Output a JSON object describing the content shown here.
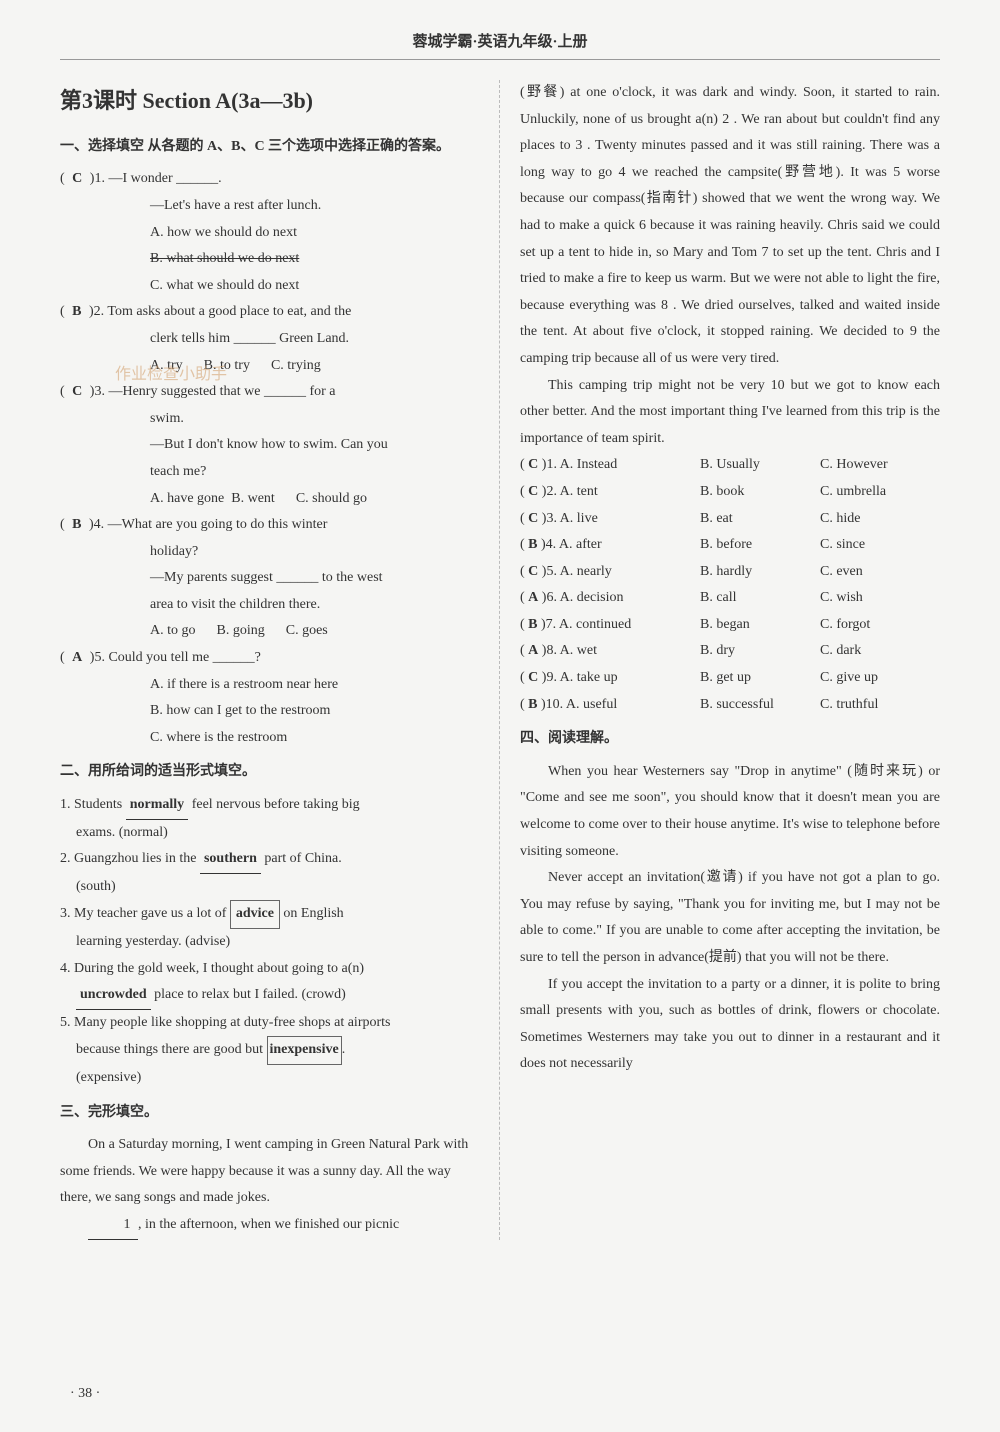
{
  "header": "蓉城学霸·英语九年级·上册",
  "pageNum": "· 38 ·",
  "left": {
    "sectionTitle": "第3课时  Section A(3a—3b)",
    "part1": {
      "heading": "一、选择填空  从各题的 A、B、C 三个选项中选择正确的答案。",
      "q1": {
        "prefix": "( ",
        "ans": "C",
        "num": " )1. —I wonder ______.",
        "line2": "—Let's have a rest after lunch.",
        "optA": "A. how we should do next",
        "optB": "B. what should we do next",
        "optC": "C. what we should do next"
      },
      "q2": {
        "prefix": "( ",
        "ans": "B",
        "num": " )2. Tom asks about a good place to eat, and the",
        "line2": "clerk tells him ______ Green Land.",
        "optA": "A. try",
        "optB": "B. to try",
        "optC": "C. trying"
      },
      "q3": {
        "prefix": "( ",
        "ans": "C",
        "num": " )3. —Henry suggested that we ______ for a",
        "line1b": "swim.",
        "line2": "—But I don't know how to swim. Can you",
        "line2b": "teach me?",
        "optA": "A. have gone",
        "optB": "B. went",
        "optC": "C. should go"
      },
      "q4": {
        "prefix": "( ",
        "ans": "B",
        "num": " )4. —What are you going to do this winter",
        "line1b": "holiday?",
        "line2": "—My parents suggest ______ to the west",
        "line2b": "area to visit the children there.",
        "optA": "A. to go",
        "optB": "B. going",
        "optC": "C. goes"
      },
      "q5": {
        "prefix": "( ",
        "ans": "A",
        "num": " )5. Could you tell me ______?",
        "optA": "A. if there is a restroom near here",
        "optB": "B. how can I get to the restroom",
        "optC": "C. where is the restroom"
      }
    },
    "part2": {
      "heading": "二、用所给词的适当形式填空。",
      "q1": {
        "pre": "1. Students ",
        "ans": "normally",
        "post": " feel nervous before taking big",
        "post2": "exams. (normal)"
      },
      "q2": {
        "pre": "2. Guangzhou lies in the ",
        "ans": "southern",
        "post": " part of China.",
        "post2": "(south)"
      },
      "q3": {
        "pre": "3. My teacher gave us a lot of ",
        "ans": "advice",
        "post": " on English",
        "post2": "learning yesterday. (advise)"
      },
      "q4": {
        "pre": "4. During the gold week, I thought about going to a(n)",
        "ans": "uncrowded",
        "post": " place to relax but I failed. (crowd)"
      },
      "q5": {
        "pre": "5. Many people like shopping at duty-free shops at airports",
        "pre2": "because things there are good but ",
        "ans": "inexpensive",
        "post": ".",
        "post2": "(expensive)"
      }
    },
    "part3": {
      "heading": "三、完形填空。",
      "p1": "On a Saturday morning, I went camping in Green Natural Park with some friends. We were happy because it was a sunny day. All the way there, we sang songs and made jokes.",
      "p2pre": "",
      "p2blank": "1",
      "p2post": ", in the afternoon, when we finished our picnic"
    },
    "watermark": "作业检查小助手"
  },
  "right": {
    "passage1": "(野餐) at one o'clock, it was dark and windy. Soon, it started to rain. Unluckily, none of us brought a(n)  2 . We ran about but couldn't find any places to  3 . Twenty minutes passed and it was still raining. There was a long way to go  4  we reached the campsite(野营地). It was  5  worse because our compass(指南针) showed that we went the wrong way. We had to make a quick  6  because it was raining heavily. Chris said we could set up a tent to hide in, so Mary and Tom  7  to set up the tent. Chris and I tried to make a fire to keep us warm. But we were not able to light the fire, because everything was  8 . We dried ourselves, talked and waited inside the tent. At about five o'clock, it stopped raining. We decided to  9  the camping trip because all of us were very tired.",
    "passage2": "This camping trip might not be very  10  but we got to know each other better. And the most important thing I've learned from this trip is the importance of team spirit.",
    "cloze": [
      {
        "ans": "C",
        "n": "1",
        "a": "A. Instead",
        "b": "B. Usually",
        "c": "C. However"
      },
      {
        "ans": "C",
        "n": "2",
        "a": "A. tent",
        "b": "B. book",
        "c": "C. umbrella"
      },
      {
        "ans": "C",
        "n": "3",
        "a": "A. live",
        "b": "B. eat",
        "c": "C. hide"
      },
      {
        "ans": "B",
        "n": "4",
        "a": "A. after",
        "b": "B. before",
        "c": "C. since"
      },
      {
        "ans": "C",
        "n": "5",
        "a": "A. nearly",
        "b": "B. hardly",
        "c": "C. even"
      },
      {
        "ans": "A",
        "n": "6",
        "a": "A. decision",
        "b": "B. call",
        "c": "C. wish"
      },
      {
        "ans": "B",
        "n": "7",
        "a": "A. continued",
        "b": "B. began",
        "c": "C. forgot"
      },
      {
        "ans": "A",
        "n": "8",
        "a": "A. wet",
        "b": "B. dry",
        "c": "C. dark"
      },
      {
        "ans": "C",
        "n": "9",
        "a": "A. take up",
        "b": "B. get up",
        "c": "C. give up"
      },
      {
        "ans": "B",
        "n": "10",
        "a": "A. useful",
        "b": "B. successful",
        "c": "C. truthful"
      }
    ],
    "part4": {
      "heading": "四、阅读理解。",
      "p1": "When you hear Westerners say \"Drop in anytime\" (随时来玩) or \"Come and see me soon\", you should know that it doesn't mean you are welcome to come over to their house anytime. It's wise to telephone before visiting someone.",
      "p2": "Never accept an invitation(邀请) if you have not got a plan to go. You may refuse by saying, \"Thank you for inviting me, but I may not be able to come.\" If you are unable to come after accepting the invitation, be sure to tell the person in advance(提前) that you will not be there.",
      "p3": "If you accept the invitation to a party or a dinner, it is polite to bring small presents with you, such as bottles of drink, flowers or chocolate. Sometimes Westerners may take you out to dinner in a restaurant and it does not necessarily"
    }
  }
}
